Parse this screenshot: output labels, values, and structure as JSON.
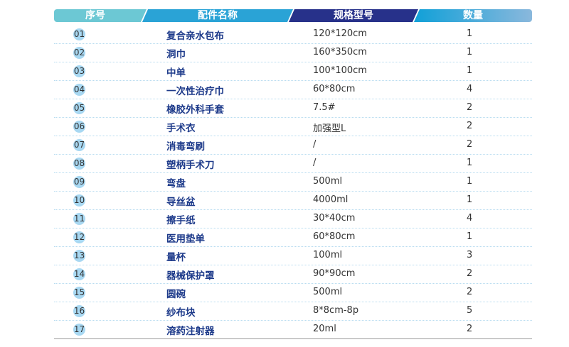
{
  "header": {
    "no": "序号",
    "name": "配件名称",
    "spec": "规格型号",
    "qty": "数量"
  },
  "colors": {
    "h1": "#6cc8d4",
    "h2": "#2aa3d6",
    "h3": "#27318a",
    "h4": "#8ab8dc",
    "circle": "#a8d8f2"
  },
  "rows": [
    {
      "no": "01",
      "name": "复合亲水包布",
      "spec": "120*120cm",
      "qty": "1"
    },
    {
      "no": "02",
      "name": "洞巾",
      "spec": "160*350cm",
      "qty": "1"
    },
    {
      "no": "03",
      "name": "中单",
      "spec": "100*100cm",
      "qty": "1"
    },
    {
      "no": "04",
      "name": "一次性治疗巾",
      "spec": "60*80cm",
      "qty": "4"
    },
    {
      "no": "05",
      "name": "橡胶外科手套",
      "spec": "7.5#",
      "qty": "2"
    },
    {
      "no": "06",
      "name": "手术衣",
      "spec": "加强型L",
      "qty": "2"
    },
    {
      "no": "07",
      "name": "消毒弯刷",
      "spec": "/",
      "qty": "2"
    },
    {
      "no": "08",
      "name": "塑柄手术刀",
      "spec": "/",
      "qty": "1"
    },
    {
      "no": "09",
      "name": "弯盘",
      "spec": "500ml",
      "qty": "1"
    },
    {
      "no": "10",
      "name": "导丝盆",
      "spec": "4000ml",
      "qty": "1"
    },
    {
      "no": "11",
      "name": "擦手纸",
      "spec": "30*40cm",
      "qty": "4"
    },
    {
      "no": "12",
      "name": "医用垫单",
      "spec": "60*80cm",
      "qty": "1"
    },
    {
      "no": "13",
      "name": "量杯",
      "spec": "100ml",
      "qty": "3"
    },
    {
      "no": "14",
      "name": "器械保护罩",
      "spec": "90*90cm",
      "qty": "2"
    },
    {
      "no": "15",
      "name": "圆碗",
      "spec": "500ml",
      "qty": "2"
    },
    {
      "no": "16",
      "name": "纱布块",
      "spec": "8*8cm-8p",
      "qty": "5"
    },
    {
      "no": "17",
      "name": "溶药注射器",
      "spec": "20ml",
      "qty": "2"
    }
  ]
}
